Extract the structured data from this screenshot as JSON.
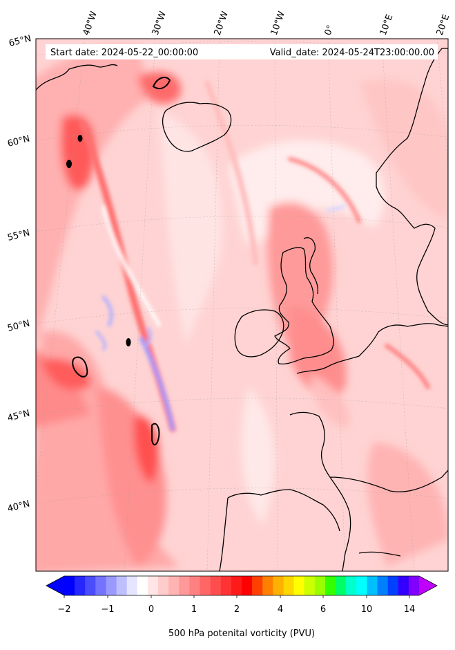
{
  "map": {
    "start_date": "Start date: 2024-05-22_00:00:00",
    "valid_date": "Valid_date: 2024-05-24T23:00:00.00",
    "lon_labels": [
      "40°W",
      "30°W",
      "20°W",
      "10°W",
      "0°",
      "10°E",
      "20°E"
    ],
    "lat_labels": [
      "65°N",
      "60°N",
      "55°N",
      "50°N",
      "45°N",
      "40°N"
    ],
    "field_colors": {
      "ocean_base": "#ffd6d6",
      "light": "#ffecec",
      "mid": "#ffadad",
      "strong": "#ff7a7a",
      "core": "#ff4040",
      "negative": "#c8c8ff",
      "coast": "#000000"
    }
  },
  "colorbar": {
    "ticks": [
      "−2",
      "−1",
      "0",
      "1",
      "2",
      "4",
      "6",
      "10",
      "14"
    ],
    "label": "500 hPa potenital vorticity (PVU)",
    "colors": [
      "#0000ff",
      "#2626ff",
      "#4c4cff",
      "#7373ff",
      "#9999ff",
      "#bfbfff",
      "#e5e5ff",
      "#ffffff",
      "#ffe5e5",
      "#ffcccc",
      "#ffb3b3",
      "#ff9999",
      "#ff8080",
      "#ff6666",
      "#ff4d4d",
      "#ff3333",
      "#ff1a1a",
      "#ff0000",
      "#ff4000",
      "#ff8000",
      "#ffb000",
      "#ffd700",
      "#ffff00",
      "#ccff00",
      "#99ff00",
      "#33ff00",
      "#00ff66",
      "#00ffcc",
      "#00ffff",
      "#00bfff",
      "#0080ff",
      "#0040ff",
      "#3300ff",
      "#8000ff"
    ],
    "under_color": "#0000ff",
    "over_color": "#c000ff"
  }
}
